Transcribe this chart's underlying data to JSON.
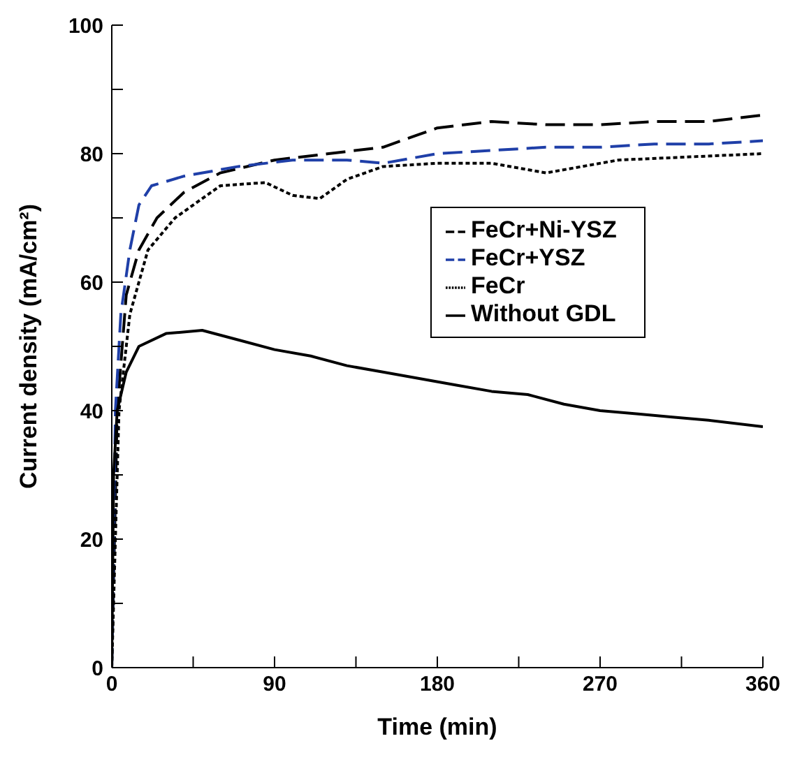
{
  "chart_data": {
    "type": "line",
    "xlabel": "Time (min)",
    "ylabel": "Current density (mA/cm²)",
    "xlim": [
      0,
      360
    ],
    "ylim": [
      0,
      100
    ],
    "xticks": [
      0,
      {
        "value": 45,
        "label": null
      },
      90,
      {
        "value": 135,
        "label": null
      },
      180,
      {
        "value": 225,
        "label": null
      },
      270,
      {
        "value": 315,
        "label": null
      },
      360
    ],
    "yticks": [
      0,
      {
        "value": 10,
        "label": null
      },
      20,
      {
        "value": 30,
        "label": null
      },
      40,
      {
        "value": 50,
        "label": null
      },
      60,
      {
        "value": 70,
        "label": null
      },
      80,
      {
        "value": 90,
        "label": null
      },
      100
    ],
    "grid": false,
    "legend": "right",
    "marker": "none",
    "series": [
      {
        "name": "FeCr+Ni-YSZ",
        "color": "#000000",
        "line_style": "dashed",
        "x": [
          0,
          3,
          8,
          15,
          25,
          40,
          60,
          90,
          120,
          150,
          170,
          180,
          210,
          240,
          270,
          300,
          330,
          360
        ],
        "values": [
          0,
          40,
          58,
          65,
          70,
          74,
          77,
          79,
          80,
          81,
          83,
          84,
          85,
          84.5,
          84.5,
          85,
          85,
          86
        ]
      },
      {
        "name": "FeCr+YSZ",
        "color": "#1f3fa8",
        "line_style": "dashed",
        "x": [
          0,
          2,
          5,
          10,
          15,
          22,
          40,
          70,
          100,
          130,
          150,
          180,
          210,
          240,
          270,
          300,
          330,
          360
        ],
        "values": [
          0,
          40,
          55,
          65,
          72,
          75,
          76.5,
          78,
          79,
          79,
          78.5,
          80,
          80.5,
          81,
          81,
          81.5,
          81.5,
          82
        ]
      },
      {
        "name": "FeCr",
        "color": "#000000",
        "line_style": "dotted",
        "x": [
          0,
          4,
          10,
          20,
          35,
          60,
          85,
          100,
          115,
          130,
          150,
          180,
          210,
          240,
          260,
          280,
          320,
          360
        ],
        "values": [
          0,
          40,
          55,
          65,
          70,
          75,
          75.5,
          73.5,
          73,
          76,
          78,
          78.5,
          78.5,
          77,
          78,
          79,
          79.5,
          80
        ]
      },
      {
        "name": "Without GDL",
        "color": "#000000",
        "line_style": "solid",
        "x": [
          0,
          1,
          3,
          8,
          15,
          30,
          50,
          70,
          90,
          110,
          130,
          150,
          170,
          190,
          210,
          230,
          250,
          270,
          290,
          310,
          330,
          360
        ],
        "values": [
          0,
          30,
          40,
          46,
          50,
          52,
          52.5,
          51,
          49.5,
          48.5,
          47,
          46,
          45,
          44,
          43,
          42.5,
          41,
          40,
          39.5,
          39,
          38.5,
          37.5
        ]
      }
    ]
  }
}
